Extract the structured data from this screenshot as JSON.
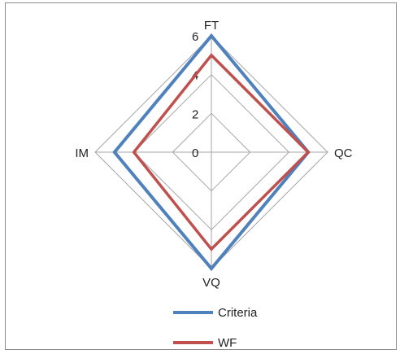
{
  "chart_data": {
    "type": "radar",
    "axes": [
      "FT",
      "QC",
      "VQ",
      "IM"
    ],
    "rmax": 6,
    "ticks": [
      0,
      2,
      4,
      6
    ],
    "tick_labels": [
      "0",
      "2",
      "4",
      "6"
    ],
    "series": [
      {
        "name": "Criteria",
        "values": [
          6,
          5,
          6,
          5
        ],
        "color": "#4f81bd"
      },
      {
        "name": "WF",
        "values": [
          5,
          5,
          5,
          4
        ],
        "color": "#c0504d"
      }
    ],
    "grid": true,
    "legend_position": "bottom"
  }
}
